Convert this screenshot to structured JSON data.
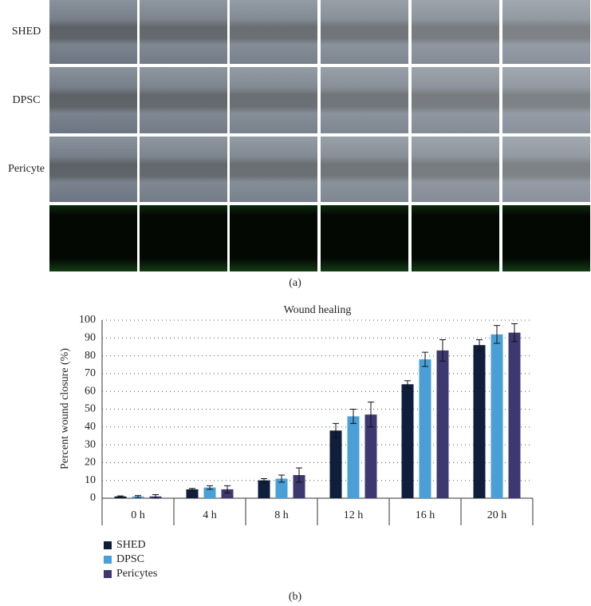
{
  "panel_a": {
    "row_labels": [
      "SHED",
      "DPSC",
      "Pericyte"
    ],
    "caption": "(a)"
  },
  "chart_data": {
    "type": "bar",
    "title": "Wound healing",
    "caption": "(b)",
    "y_label": "Percent wound closure (%)",
    "categories": [
      "0 h",
      "4 h",
      "8 h",
      "12 h",
      "16 h",
      "20 h"
    ],
    "series": [
      {
        "name": "SHED",
        "color": "#0f1e3a",
        "values": [
          1,
          5,
          10,
          38,
          64,
          86
        ],
        "errors": [
          0.3,
          0.5,
          1,
          4,
          2,
          3
        ]
      },
      {
        "name": "DPSC",
        "color": "#4a9fd6",
        "values": [
          1,
          6,
          11,
          46,
          78,
          92
        ],
        "errors": [
          0.5,
          1,
          2,
          4,
          4,
          5
        ]
      },
      {
        "name": "Pericytes",
        "color": "#3d3970",
        "values": [
          1,
          5,
          13,
          47,
          83,
          93
        ],
        "errors": [
          1,
          2,
          4,
          7,
          6,
          5
        ]
      }
    ],
    "ylim": [
      0,
      100
    ],
    "yticks": [
      0,
      10,
      20,
      30,
      40,
      50,
      60,
      70,
      80,
      90,
      100
    ],
    "grid": true
  }
}
